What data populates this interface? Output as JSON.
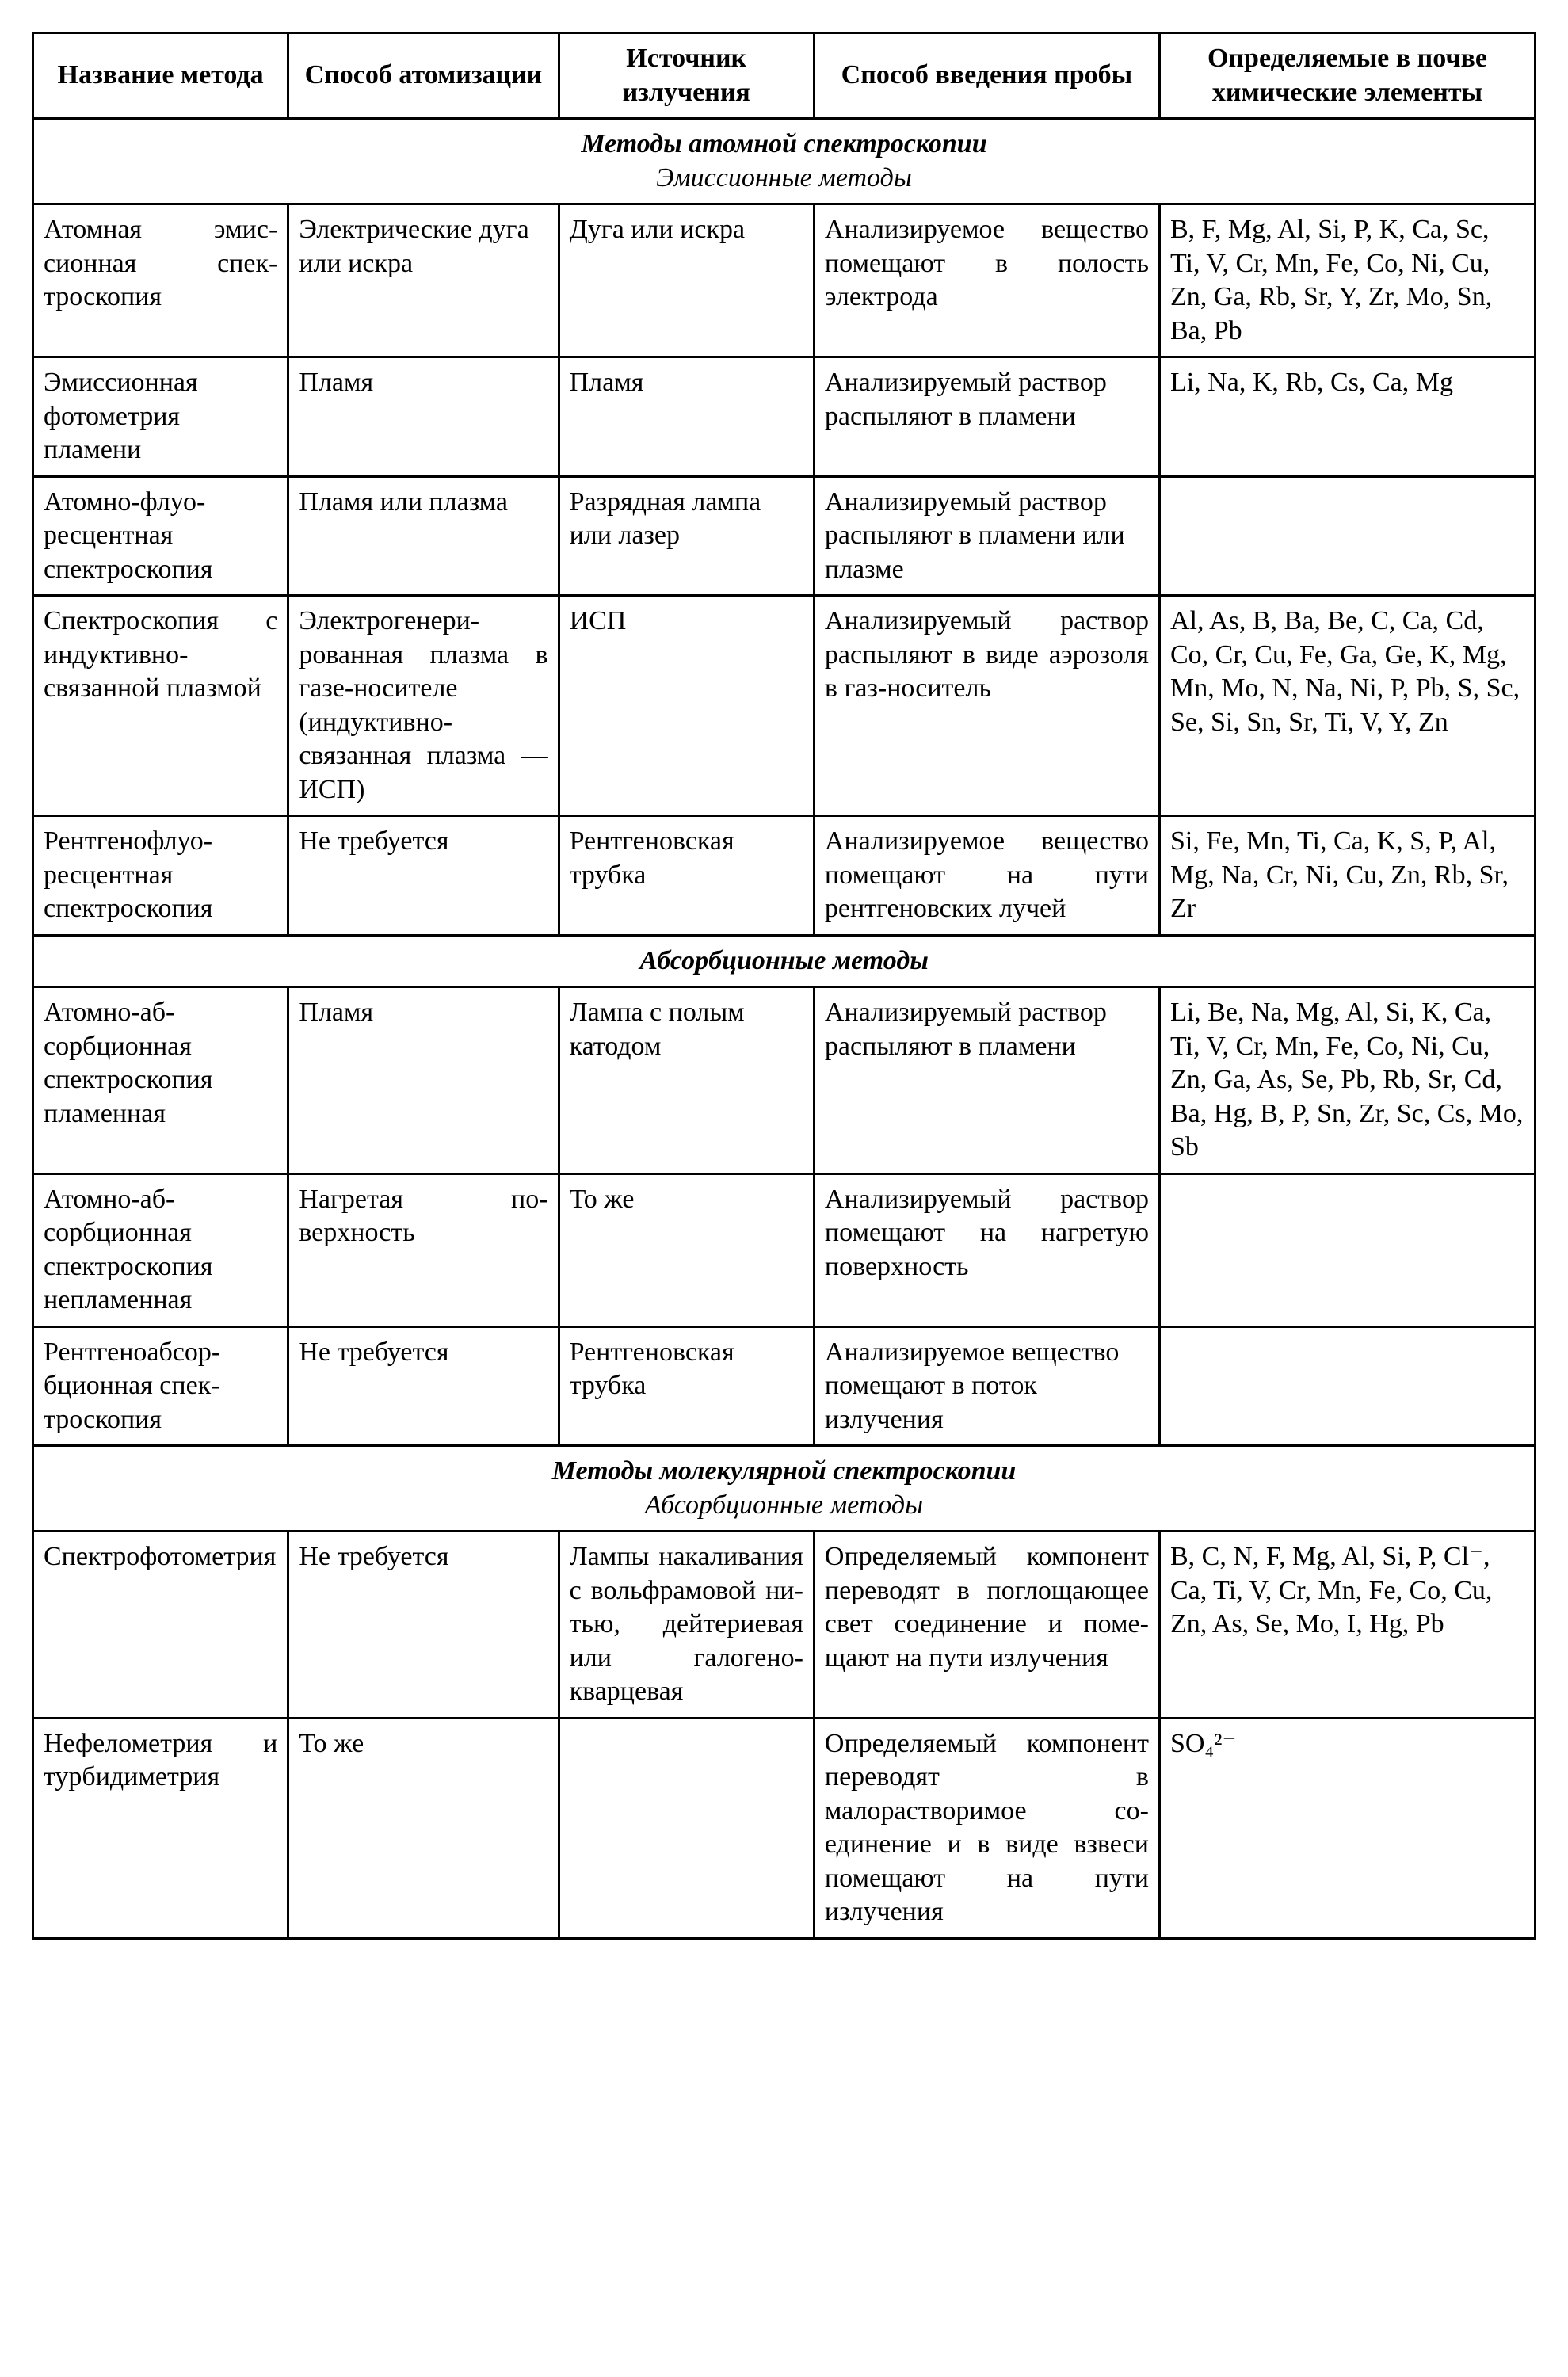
{
  "headers": {
    "c1": "Название метода",
    "c2": "Способ атомизации",
    "c3": "Источник излучения",
    "c4": "Способ введения пробы",
    "c5": "Определяемые в почве химические элементы"
  },
  "sections": {
    "s1_line1": "Методы атомной спектроскопии",
    "s1_line2": "Эмиссионные методы",
    "s2_line1": "Абсорбционные методы",
    "s3_line1": "Методы молекулярной спектроскопии",
    "s3_line2": "Абсорбционные методы"
  },
  "rows": {
    "r1": {
      "c1": "Атомная эмис­сионная спек­троскопия",
      "c2": "Электрические дуга или искра",
      "c3": "Дуга или искра",
      "c4": "Анализируемое ве­щество помещают в полость электрода",
      "c5": "B, F, Mg, Al, Si, P, K, Ca, Sc, Ti, V, Cr, Mn, Fe, Co, Ni, Cu, Zn, Ga, Rb, Sr, Y, Zr, Mo, Sn, Ba, Pb"
    },
    "r2": {
      "c1": "Эмиссионная фотометрия пламени",
      "c2": "Пламя",
      "c3": "Пламя",
      "c4": "Анализируемый раствор распыляют в пламени",
      "c5": "Li, Na, K, Rb, Cs, Ca, Mg"
    },
    "r3": {
      "c1": "Атомно-флуо­ресцентная спектроскопия",
      "c2": "Пламя или плазма",
      "c3": "Разрядная лампа или лазер",
      "c4": "Анализируемый раствор распыляют в пламени или плазме",
      "c5": ""
    },
    "r4": {
      "c1": "Спектроскопия с индуктивно-связанной плазмой",
      "c2": "Электрогенери­рованная плазма в газе-носителе (индуктивно-связанная плаз­ма — ИСП)",
      "c3": "ИСП",
      "c4": "Анализируемый раствор распыляют в виде аэрозоля в газ-носитель",
      "c5": "Al, As, B, Ba, Be, C, Ca, Cd, Co, Cr, Cu, Fe, Ga, Ge, K, Mg, Mn, Mo, N, Na, Ni, P, Pb, S, Sc, Se, Si, Sn, Sr, Ti, V, Y, Zn"
    },
    "r5": {
      "c1": "Рентгенофлуо­ресцентная спектроскопия",
      "c2": "Не требуется",
      "c3": "Рентгеновская трубка",
      "c4": "Анализируемое ве­щество помещают на пути рентгеновских лучей",
      "c5": "Si, Fe, Mn, Ti, Ca, K, S, P, Al, Mg, Na, Cr, Ni, Cu, Zn, Rb, Sr, Zr"
    },
    "r6": {
      "c1": "Атомно-аб­сорбционная спектроскопия пламенная",
      "c2": "Пламя",
      "c3": "Лампа с полым катодом",
      "c4": "Анализируемый раствор распыляют в пламени",
      "c5": "Li, Be, Na, Mg, Al, Si, K, Ca, Ti, V, Cr, Mn, Fe, Co, Ni, Cu, Zn, Ga, As, Se, Pb, Rb, Sr, Cd, Ba, Hg, B, P, Sn, Zr, Sc, Cs, Mo, Sb"
    },
    "r7": {
      "c1": "Атомно-аб­сорбционная спектроскопия непламенная",
      "c2": "Нагретая по­верхность",
      "c3": "То же",
      "c4": "Анализируемый рас­твор помещают на нагретую поверх­ность",
      "c5": ""
    },
    "r8": {
      "c1": "Рентгеноабсор­бционная спек­троскопия",
      "c2": "Не требуется",
      "c3": "Рентгеновская трубка",
      "c4": "Анализируемое веще­ство помещают в по­ток излучения",
      "c5": ""
    },
    "r9": {
      "c1": "Спектрофото­метрия",
      "c2": "Не требуется",
      "c3": "Лампы накали­вания с вольф­рамовой ни­тью, дейтерие­вая или галоге­но-кварцевая",
      "c4": "Определяемый ком­понент переводят в поглощающее свет соединение и поме­щают на пути излу­чения",
      "c5": "B, C, N, F, Mg, Al, Si, P, Cl⁻, Ca, Ti, V, Cr, Mn, Fe, Co, Cu, Zn, As, Se, Mo, I, Hg, Pb"
    },
    "r10": {
      "c1": "Нефелометрия и турбидимет­рия",
      "c2": "То же",
      "c3": "",
      "c4": "Определяемый ком­понент переводят в малорастворимое со­единение и в виде взвеси помещают на пути излучения",
      "c5": "SO₄²⁻"
    }
  },
  "style": {
    "border_color": "#000000",
    "background_color": "#ffffff",
    "text_color": "#000000",
    "header_fontsize": 34,
    "cell_fontsize": 34,
    "font_family": "Times New Roman"
  }
}
